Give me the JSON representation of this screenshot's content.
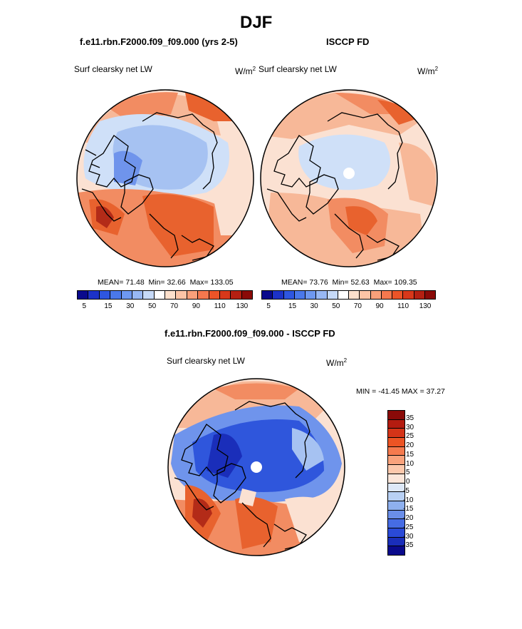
{
  "page_title": "DJF",
  "panels": [
    {
      "title": "f.e11.rbn.F2000.f09_f09.000 (yrs 2-5)",
      "variable": "Surf clearsky net LW",
      "units": "W/m",
      "units_sup": "2",
      "mean_label": "MEAN=",
      "mean": "71.48",
      "min_label": "Min=",
      "min": "32.66",
      "max_label": "Max=",
      "max": "133.05"
    },
    {
      "title": "ISCCP FD",
      "variable": "Surf clearsky net LW",
      "units": "W/m",
      "units_sup": "2",
      "mean_label": "MEAN=",
      "mean": "73.76",
      "min_label": "Min=",
      "min": "52.63",
      "max_label": "Max=",
      "max": "109.35"
    }
  ],
  "abs_colorbar": {
    "colors": [
      "#0a0a8c",
      "#1c32c8",
      "#2e56e0",
      "#4a78ea",
      "#6e98f0",
      "#98b8f4",
      "#c6daf8",
      "#ffffff",
      "#fde0cc",
      "#fcc4a6",
      "#f9a07a",
      "#f5784e",
      "#ec5428",
      "#d8381a",
      "#b42012",
      "#8a0a08"
    ],
    "ticks": [
      "5",
      "15",
      "30",
      "50",
      "70",
      "90",
      "110",
      "130"
    ]
  },
  "diff": {
    "title": "f.e11.rbn.F2000.f09_f09.000 - ISCCP FD",
    "variable": "Surf clearsky net LW",
    "units": "W/m",
    "units_sup": "2",
    "min_max_text": "MIN = -41.45 MAX =  37.27",
    "colorbar": {
      "colors": [
        "#8a0a08",
        "#b41c10",
        "#d43418",
        "#ec5424",
        "#f57a4e",
        "#f9a27c",
        "#fcc8ac",
        "#fbe6da",
        "#dde8f8",
        "#b8d0f4",
        "#8eb0ee",
        "#6a8ee8",
        "#466ce4",
        "#2a4ad8",
        "#1a2eba",
        "#0a0a8c"
      ],
      "ticks": [
        "35",
        "30",
        "25",
        "20",
        "15",
        "10",
        "5",
        "0",
        "-5",
        "-10",
        "-15",
        "-20",
        "-25",
        "-30",
        "-35"
      ]
    }
  },
  "colors": {
    "pale_pink": "#fbe1d2",
    "light_orange": "#f7b898",
    "orange": "#f28c62",
    "red_orange": "#e8622e",
    "dark_red": "#b32b18",
    "pale_blue": "#cfe0f8",
    "light_blue": "#a6c2f2",
    "mid_blue": "#6f94ec",
    "deep_blue": "#2f56dc"
  }
}
